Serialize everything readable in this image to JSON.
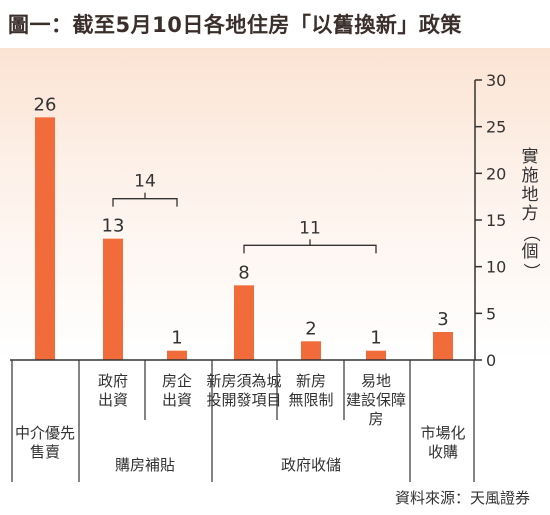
{
  "title": "圖一：截至5月10日各地住房「以舊換新」政策",
  "source": "資料來源：天風證券",
  "colors": {
    "bar": "#f26b3a",
    "text": "#333333",
    "line": "#333333"
  },
  "chart_data": {
    "type": "bar",
    "ylabel": "實施地方（個）",
    "ylim": [
      0,
      30
    ],
    "yticks": [
      0,
      5,
      10,
      15,
      20,
      25,
      30
    ],
    "categories": [
      "中介優先售賣",
      "政府出資",
      "房企出資",
      "新房須為城投開發項目",
      "新房無限制",
      "易地建設保障房",
      "市場化收購"
    ],
    "values": [
      26,
      13,
      1,
      8,
      2,
      1,
      3
    ],
    "groups": [
      {
        "label": "購房補貼",
        "members": [
          1,
          2
        ],
        "total": 14
      },
      {
        "label": "政府收儲",
        "members": [
          3,
          4,
          5
        ],
        "total": 11
      }
    ]
  }
}
